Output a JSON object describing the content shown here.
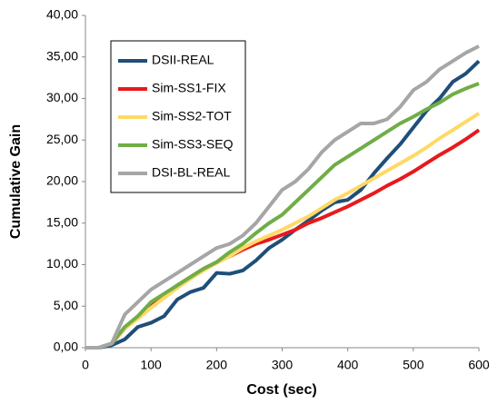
{
  "chart_data": {
    "type": "line",
    "xlabel": "Cost (sec)",
    "ylabel": "Cumulative Gain",
    "x": [
      0,
      20,
      40,
      60,
      80,
      100,
      120,
      140,
      160,
      180,
      200,
      220,
      240,
      260,
      280,
      300,
      320,
      340,
      360,
      380,
      400,
      420,
      440,
      460,
      480,
      500,
      520,
      540,
      560,
      580,
      600
    ],
    "series": [
      {
        "name": "DSII-REAL",
        "color": "#1f4e79",
        "values": [
          0,
          0,
          0.3,
          1,
          2.5,
          3,
          3.8,
          5.8,
          6.7,
          7.2,
          9,
          8.9,
          9.3,
          10.5,
          12,
          13,
          14.2,
          15.3,
          16.5,
          17.5,
          17.8,
          19,
          21,
          22.8,
          24.5,
          26.5,
          28.5,
          30,
          32,
          33,
          34.5
        ]
      },
      {
        "name": "Sim-SS1-FIX",
        "color": "#e8191c",
        "values": [
          0,
          0,
          0.5,
          2.3,
          3.6,
          5,
          6.3,
          7.5,
          8.5,
          9.5,
          10.3,
          11,
          11.8,
          12.5,
          13,
          13.6,
          14.2,
          15,
          15.6,
          16.3,
          17,
          17.8,
          18.6,
          19.5,
          20.3,
          21.2,
          22.2,
          23.2,
          24.1,
          25.1,
          26.2
        ]
      },
      {
        "name": "Sim-SS2-TOT",
        "color": "#ffd966",
        "values": [
          0,
          0,
          0.5,
          2.3,
          3.5,
          4.8,
          6,
          7.2,
          8.3,
          9.3,
          10.2,
          11,
          12,
          12.8,
          13.5,
          14.2,
          15,
          15.8,
          16.8,
          17.8,
          18.6,
          19.5,
          20.4,
          21.3,
          22.2,
          23.1,
          24.1,
          25.2,
          26.2,
          27.2,
          28.2
        ]
      },
      {
        "name": "Sim-SS3-SEQ",
        "color": "#70ad47",
        "values": [
          0,
          0,
          0.5,
          2.5,
          3.8,
          5.5,
          6.5,
          7.5,
          8.5,
          9.5,
          10.3,
          11.5,
          12.5,
          13.8,
          15,
          16,
          17.5,
          19,
          20.5,
          22,
          23,
          24,
          25,
          26,
          27,
          27.8,
          28.7,
          29.5,
          30.5,
          31.2,
          31.8
        ]
      },
      {
        "name": "DSI-BL-REAL",
        "color": "#a6a6a6",
        "values": [
          0,
          0,
          0.5,
          4,
          5.5,
          7,
          8,
          9,
          10,
          11,
          12,
          12.5,
          13.5,
          15,
          17,
          19,
          20,
          21.5,
          23.5,
          25,
          26,
          27,
          27,
          27.5,
          29,
          31,
          32,
          33.5,
          34.5,
          35.5,
          36.3
        ]
      }
    ],
    "xlim": [
      0,
      600
    ],
    "xticks": [
      0,
      100,
      200,
      300,
      400,
      500,
      600
    ],
    "ylim": [
      0,
      40
    ],
    "yticks": [
      {
        "value": 0,
        "label": "0,00"
      },
      {
        "value": 5,
        "label": "5,00"
      },
      {
        "value": 10,
        "label": "10,00"
      },
      {
        "value": 15,
        "label": "15,00"
      },
      {
        "value": 20,
        "label": "20,00"
      },
      {
        "value": 25,
        "label": "25,00"
      },
      {
        "value": 30,
        "label": "30,00"
      },
      {
        "value": 35,
        "label": "35,00"
      },
      {
        "value": 40,
        "label": "40,00"
      }
    ],
    "legend": "upper left"
  }
}
